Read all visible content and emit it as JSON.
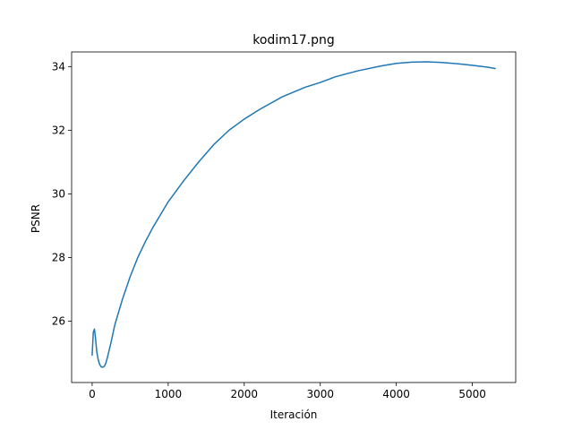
{
  "chart_data": {
    "type": "line",
    "title": "kodim17.png",
    "xlabel": "Iteración",
    "ylabel": "PSNR",
    "xlim": [
      -270,
      5570
    ],
    "ylim": [
      24.07,
      34.46
    ],
    "x_ticks": [
      0,
      1000,
      2000,
      3000,
      4000,
      5000
    ],
    "y_ticks": [
      26,
      28,
      30,
      32,
      34
    ],
    "grid": false,
    "legend": "none",
    "series": [
      {
        "color": "#1f77b4",
        "x": [
          0,
          15,
          30,
          45,
          60,
          80,
          100,
          120,
          140,
          160,
          180,
          200,
          250,
          300,
          400,
          500,
          600,
          700,
          800,
          900,
          1000,
          1200,
          1400,
          1600,
          1800,
          2000,
          2200,
          2500,
          2800,
          3000,
          3200,
          3500,
          3800,
          4000,
          4200,
          4400,
          4600,
          4800,
          5000,
          5200,
          5300
        ],
        "y": [
          24.93,
          25.65,
          25.75,
          25.45,
          25.05,
          24.78,
          24.63,
          24.56,
          24.55,
          24.58,
          24.68,
          24.85,
          25.35,
          25.9,
          26.7,
          27.4,
          28.0,
          28.5,
          28.95,
          29.35,
          29.75,
          30.4,
          31.0,
          31.55,
          32.0,
          32.35,
          32.65,
          33.05,
          33.35,
          33.5,
          33.68,
          33.87,
          34.02,
          34.1,
          34.14,
          34.15,
          34.13,
          34.09,
          34.04,
          33.98,
          33.94
        ]
      }
    ]
  }
}
